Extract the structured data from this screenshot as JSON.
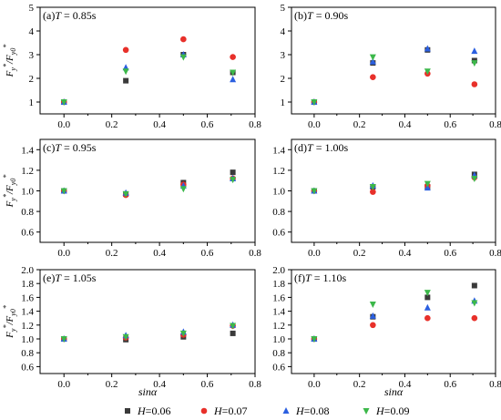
{
  "figure": {
    "legend": [
      {
        "var": "H",
        "value": "=0.06",
        "marker": "square",
        "color": "#3a3a3a"
      },
      {
        "var": "H",
        "value": "=0.07",
        "marker": "circle",
        "color": "#e8302a"
      },
      {
        "var": "H",
        "value": "=0.08",
        "marker": "triangle-up",
        "color": "#2b5fe0"
      },
      {
        "var": "H",
        "value": "=0.09",
        "marker": "triangle-down",
        "color": "#3cb84a"
      }
    ],
    "xlabel": "sinα",
    "ylabel_parts": {
      "main": "F",
      "sub": "y",
      "sup": "*",
      "sep": "/",
      "sub2": "y0"
    }
  },
  "chart_data": [
    {
      "type": "scatter",
      "panel_label": "(a)",
      "param": "T",
      "param_value": " = 0.85s",
      "xlim": [
        -0.1,
        0.8
      ],
      "ylim": [
        0.5,
        5
      ],
      "xticks": [
        0.0,
        0.2,
        0.4,
        0.6,
        0.8
      ],
      "yticks": [
        1,
        2,
        3,
        4,
        5
      ],
      "x": [
        0,
        0.259,
        0.5,
        0.707
      ],
      "series": [
        {
          "name": "H=0.06",
          "values": [
            1.0,
            1.9,
            3.0,
            2.25
          ]
        },
        {
          "name": "H=0.07",
          "values": [
            1.0,
            3.2,
            3.65,
            2.9
          ]
        },
        {
          "name": "H=0.08",
          "values": [
            1.0,
            2.45,
            3.0,
            1.95
          ]
        },
        {
          "name": "H=0.09",
          "values": [
            1.0,
            2.3,
            2.9,
            2.25
          ]
        }
      ]
    },
    {
      "type": "scatter",
      "panel_label": "(b)",
      "param": "T",
      "param_value": " = 0.90s",
      "xlim": [
        -0.1,
        0.8
      ],
      "ylim": [
        0.5,
        5
      ],
      "xticks": [
        0.0,
        0.2,
        0.4,
        0.6,
        0.8
      ],
      "yticks": [
        1,
        2,
        3,
        4,
        5
      ],
      "x": [
        0,
        0.259,
        0.5,
        0.707
      ],
      "series": [
        {
          "name": "H=0.06",
          "values": [
            1.0,
            2.65,
            3.2,
            2.75
          ]
        },
        {
          "name": "H=0.07",
          "values": [
            1.0,
            2.05,
            2.2,
            1.75
          ]
        },
        {
          "name": "H=0.08",
          "values": [
            1.0,
            2.7,
            3.25,
            3.15
          ]
        },
        {
          "name": "H=0.09",
          "values": [
            1.0,
            2.9,
            2.3,
            2.65
          ]
        }
      ]
    },
    {
      "type": "scatter",
      "panel_label": "(c)",
      "param": "T",
      "param_value": " = 0.95s",
      "xlim": [
        -0.1,
        0.8
      ],
      "ylim": [
        0.5,
        1.5
      ],
      "xticks": [
        0.0,
        0.2,
        0.4,
        0.6,
        0.8
      ],
      "yticks": [
        0.6,
        0.8,
        1.0,
        1.2,
        1.4
      ],
      "x": [
        0,
        0.259,
        0.5,
        0.707
      ],
      "series": [
        {
          "name": "H=0.06",
          "values": [
            1.0,
            0.97,
            1.08,
            1.18
          ]
        },
        {
          "name": "H=0.07",
          "values": [
            1.0,
            0.96,
            1.06,
            1.12
          ]
        },
        {
          "name": "H=0.08",
          "values": [
            1.0,
            0.98,
            1.05,
            1.12
          ]
        },
        {
          "name": "H=0.09",
          "values": [
            1.0,
            0.97,
            1.02,
            1.11
          ]
        }
      ]
    },
    {
      "type": "scatter",
      "panel_label": "(d)",
      "param": "T",
      "param_value": " = 1.00s",
      "xlim": [
        -0.1,
        0.8
      ],
      "ylim": [
        0.5,
        1.5
      ],
      "xticks": [
        0.0,
        0.2,
        0.4,
        0.6,
        0.8
      ],
      "yticks": [
        0.6,
        0.8,
        1.0,
        1.2,
        1.4
      ],
      "x": [
        0,
        0.259,
        0.5,
        0.707
      ],
      "series": [
        {
          "name": "H=0.06",
          "values": [
            1.0,
            1.04,
            1.04,
            1.16
          ]
        },
        {
          "name": "H=0.07",
          "values": [
            1.0,
            0.99,
            1.05,
            1.13
          ]
        },
        {
          "name": "H=0.08",
          "values": [
            1.0,
            1.05,
            1.03,
            1.15
          ]
        },
        {
          "name": "H=0.09",
          "values": [
            1.0,
            1.04,
            1.07,
            1.12
          ]
        }
      ]
    },
    {
      "type": "scatter",
      "panel_label": "(e)",
      "param": "T",
      "param_value": " = 1.05s",
      "xlim": [
        -0.1,
        0.8
      ],
      "ylim": [
        0.5,
        2.0
      ],
      "xticks": [
        0.0,
        0.2,
        0.4,
        0.6,
        0.8
      ],
      "yticks": [
        0.6,
        0.8,
        1.0,
        1.2,
        1.4,
        1.6,
        1.8,
        2.0
      ],
      "x": [
        0,
        0.259,
        0.5,
        0.707
      ],
      "series": [
        {
          "name": "H=0.06",
          "values": [
            1.0,
            0.99,
            1.03,
            1.08
          ]
        },
        {
          "name": "H=0.07",
          "values": [
            1.0,
            1.02,
            1.06,
            1.19
          ]
        },
        {
          "name": "H=0.08",
          "values": [
            1.0,
            1.05,
            1.1,
            1.2
          ]
        },
        {
          "name": "H=0.09",
          "values": [
            1.0,
            1.03,
            1.08,
            1.19
          ]
        }
      ]
    },
    {
      "type": "scatter",
      "panel_label": "(f)",
      "param": "T",
      "param_value": " = 1.10s",
      "xlim": [
        -0.1,
        0.8
      ],
      "ylim": [
        0.5,
        2.0
      ],
      "xticks": [
        0.0,
        0.2,
        0.4,
        0.6,
        0.8
      ],
      "yticks": [
        0.6,
        0.8,
        1.0,
        1.2,
        1.4,
        1.6,
        1.8,
        2.0
      ],
      "x": [
        0,
        0.259,
        0.5,
        0.707
      ],
      "series": [
        {
          "name": "H=0.06",
          "values": [
            1.0,
            1.32,
            1.6,
            1.77
          ]
        },
        {
          "name": "H=0.07",
          "values": [
            1.0,
            1.2,
            1.3,
            1.3
          ]
        },
        {
          "name": "H=0.08",
          "values": [
            1.0,
            1.33,
            1.45,
            1.55
          ]
        },
        {
          "name": "H=0.09",
          "values": [
            1.0,
            1.5,
            1.67,
            1.52
          ]
        }
      ]
    }
  ]
}
